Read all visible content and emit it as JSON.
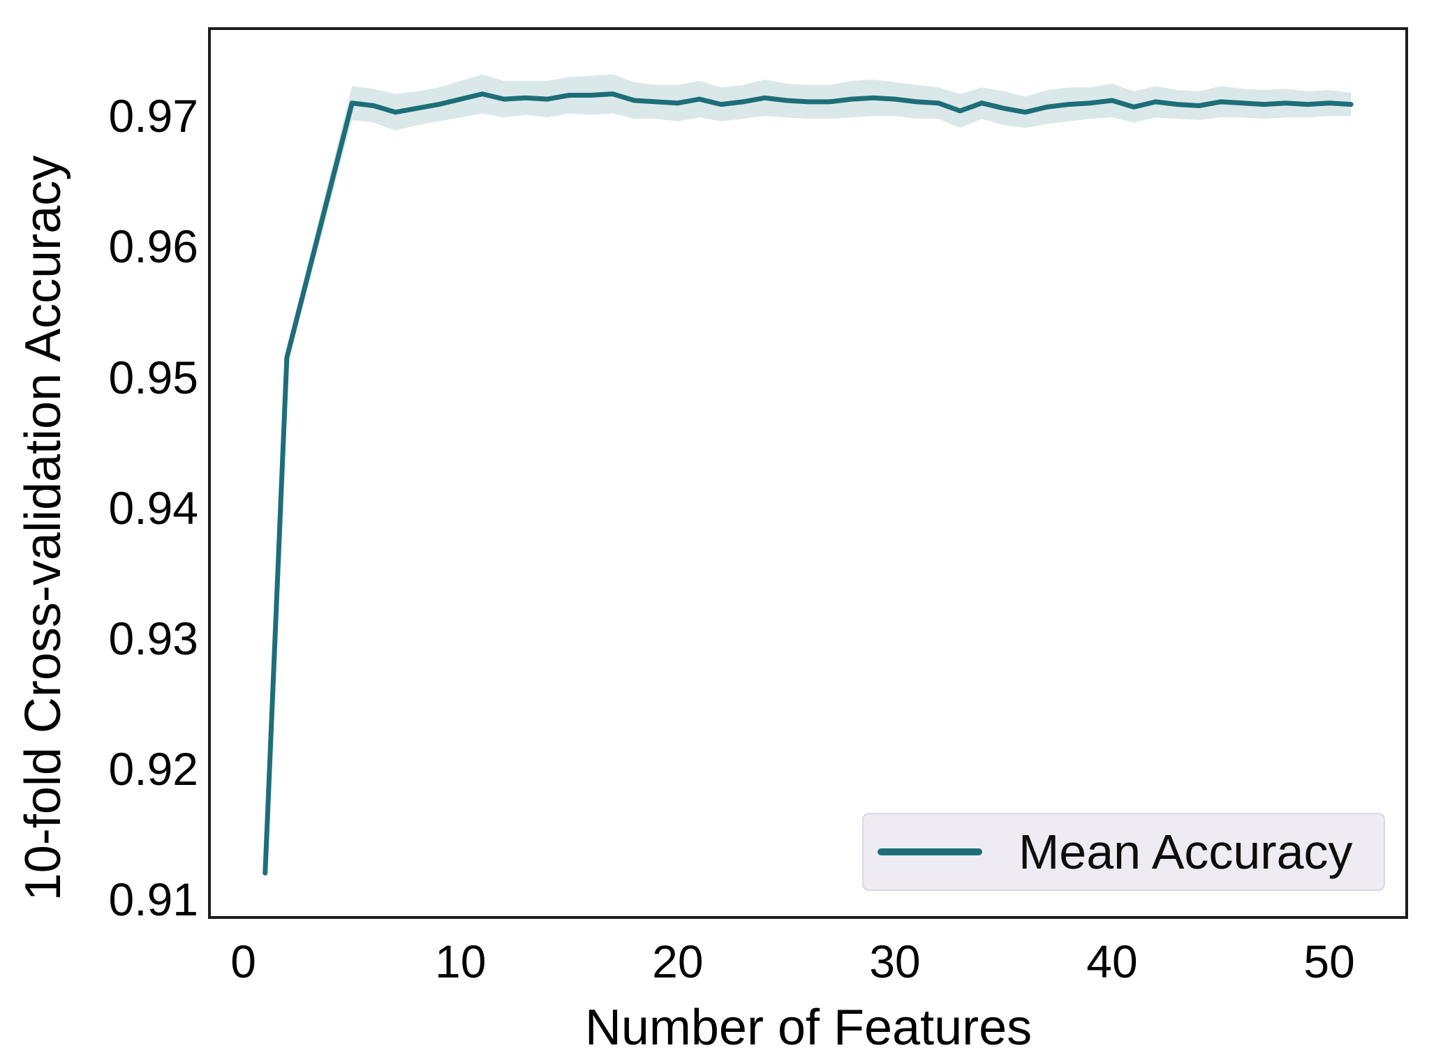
{
  "figure": {
    "background": "#ffffff"
  },
  "chart_data": {
    "type": "line",
    "title": "",
    "xlabel": "Number of Features",
    "ylabel": "10-fold Cross-validation Accuracy",
    "xlim": [
      -1.5,
      53.5
    ],
    "ylim": [
      0.9087,
      0.9766
    ],
    "xticks": [
      0,
      10,
      20,
      30,
      40,
      50
    ],
    "xtick_labels": [
      "0",
      "10",
      "20",
      "30",
      "40",
      "50"
    ],
    "yticks": [
      0.91,
      0.92,
      0.93,
      0.94,
      0.95,
      0.96,
      0.97
    ],
    "ytick_labels": [
      "0.91",
      "0.92",
      "0.93",
      "0.94",
      "0.95",
      "0.96",
      "0.97"
    ],
    "grid": false,
    "legend": {
      "position": "lower-right",
      "entries": [
        {
          "label": "Mean Accuracy",
          "color": "#1d6e79",
          "marker": "line"
        }
      ]
    },
    "series": [
      {
        "name": "Mean Accuracy",
        "color": "#1d6e79",
        "line_width": 7,
        "band_color": "#1d6e79",
        "band_opacity": 0.16,
        "x": [
          1,
          2,
          3,
          4,
          5,
          6,
          7,
          8,
          9,
          10,
          11,
          12,
          13,
          14,
          15,
          16,
          17,
          18,
          19,
          20,
          21,
          22,
          23,
          24,
          25,
          26,
          27,
          28,
          29,
          30,
          31,
          32,
          33,
          34,
          35,
          36,
          37,
          38,
          39,
          40,
          41,
          42,
          43,
          44,
          45,
          46,
          47,
          48,
          49,
          50,
          51
        ],
        "y": [
          0.912,
          0.9515,
          0.958,
          0.9645,
          0.971,
          0.9708,
          0.9703,
          0.9706,
          0.9709,
          0.9713,
          0.9717,
          0.9713,
          0.9714,
          0.9713,
          0.9716,
          0.9716,
          0.9717,
          0.9712,
          0.9711,
          0.971,
          0.9713,
          0.9709,
          0.9711,
          0.9714,
          0.9712,
          0.9711,
          0.9711,
          0.9713,
          0.9714,
          0.9713,
          0.9711,
          0.971,
          0.9704,
          0.971,
          0.9706,
          0.9703,
          0.9707,
          0.9709,
          0.971,
          0.9712,
          0.9707,
          0.9711,
          0.9709,
          0.9708,
          0.9711,
          0.971,
          0.9709,
          0.971,
          0.9709,
          0.971,
          0.9709
        ],
        "ci": [
          0.0006,
          0.0008,
          0.0009,
          0.0011,
          0.0013,
          0.0013,
          0.0014,
          0.0013,
          0.0013,
          0.0014,
          0.0015,
          0.0014,
          0.0013,
          0.0014,
          0.0014,
          0.0015,
          0.0015,
          0.0014,
          0.0013,
          0.0014,
          0.0014,
          0.0013,
          0.0013,
          0.0014,
          0.0013,
          0.0013,
          0.0013,
          0.0014,
          0.0014,
          0.0013,
          0.0013,
          0.0012,
          0.0013,
          0.0012,
          0.0013,
          0.0012,
          0.0013,
          0.0013,
          0.0012,
          0.0013,
          0.0012,
          0.0012,
          0.0011,
          0.0011,
          0.0012,
          0.0011,
          0.0011,
          0.0011,
          0.001,
          0.001,
          0.0009
        ]
      }
    ]
  },
  "styles": {
    "frame_color": "#1c1c1c",
    "text_color": "#000000",
    "legend_bg": "#eeecf2",
    "legend_border": "#d9d8e2"
  }
}
